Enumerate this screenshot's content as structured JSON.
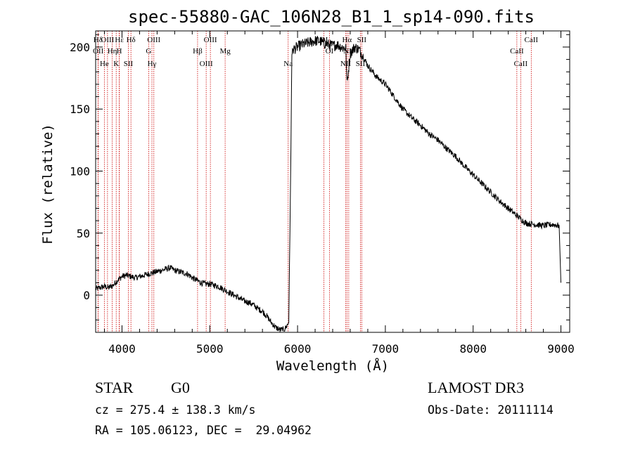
{
  "chart_data": {
    "type": "line",
    "title": "spec-55880-GAC_106N28_B1_1_sp14-090.fits",
    "xlabel": "Wavelength (Å)",
    "ylabel": "Flux (relative)",
    "xlim": [
      3700,
      9100
    ],
    "ylim": [
      -30,
      213
    ],
    "xticks": [
      "4000",
      "5000",
      "6000",
      "7000",
      "8000",
      "9000"
    ],
    "yticks": [
      "0",
      "50",
      "100",
      "150",
      "200"
    ],
    "series": [
      {
        "name": "spectrum",
        "x": [
          3700,
          3750,
          3800,
          3850,
          3900,
          3950,
          4000,
          4050,
          4100,
          4150,
          4200,
          4250,
          4300,
          4350,
          4400,
          4450,
          4500,
          4550,
          4600,
          4650,
          4700,
          4750,
          4800,
          4850,
          4900,
          4950,
          5000,
          5050,
          5100,
          5150,
          5200,
          5250,
          5300,
          5350,
          5400,
          5450,
          5500,
          5550,
          5600,
          5650,
          5700,
          5750,
          5800,
          5850,
          5900,
          5925,
          5935,
          5950,
          6000,
          6050,
          6100,
          6150,
          6200,
          6250,
          6300,
          6350,
          6400,
          6450,
          6500,
          6550,
          6563,
          6600,
          6650,
          6700,
          6750,
          6800,
          6900,
          7000,
          7100,
          7200,
          7300,
          7400,
          7500,
          7600,
          7700,
          7800,
          7900,
          8000,
          8100,
          8200,
          8300,
          8400,
          8500,
          8600,
          8700,
          8800,
          8900,
          8980,
          9000
        ],
        "y": [
          5,
          6,
          7,
          6,
          8,
          12,
          15,
          16,
          15,
          14,
          15,
          16,
          17,
          18,
          19,
          20,
          21,
          22,
          20,
          19,
          18,
          17,
          14,
          12,
          10,
          9,
          9,
          8,
          7,
          5,
          3,
          1,
          -1,
          -3,
          -5,
          -6,
          -8,
          -11,
          -13,
          -17,
          -22,
          -26,
          -28,
          -28,
          -22,
          120,
          195,
          198,
          200,
          202,
          203,
          204,
          205,
          205,
          203,
          202,
          201,
          202,
          200,
          199,
          170,
          195,
          200,
          198,
          192,
          185,
          176,
          170,
          160,
          150,
          143,
          137,
          130,
          125,
          118,
          112,
          104,
          97,
          90,
          83,
          76,
          70,
          64,
          58,
          57,
          56,
          57,
          56,
          10
        ]
      }
    ],
    "lines": [
      {
        "label": "Hδ",
        "wavelength": 3727
      },
      {
        "label": "OII",
        "wavelength": 3729
      },
      {
        "label": "He",
        "wavelength": 3799
      },
      {
        "label": "OIII",
        "wavelength": 3835
      },
      {
        "label": "Hη",
        "wavelength": 3889
      },
      {
        "label": "K",
        "wavelength": 3934
      },
      {
        "label": "Hε",
        "wavelength": 3970
      },
      {
        "label": "H",
        "wavelength": 3968
      },
      {
        "label": "SII",
        "wavelength": 4072
      },
      {
        "label": "Hδ",
        "wavelength": 4102
      },
      {
        "label": "G",
        "wavelength": 4304
      },
      {
        "label": "Hγ",
        "wavelength": 4341
      },
      {
        "label": "OIII",
        "wavelength": 4363
      },
      {
        "label": "Hβ",
        "wavelength": 4861
      },
      {
        "label": "OIII",
        "wavelength": 4959
      },
      {
        "label": "OIII",
        "wavelength": 5007
      },
      {
        "label": "Mg",
        "wavelength": 5175
      },
      {
        "label": "Na",
        "wavelength": 5893
      },
      {
        "label": "OI",
        "wavelength": 6300
      },
      {
        "label": "OI",
        "wavelength": 6363
      },
      {
        "label": "NII",
        "wavelength": 6548
      },
      {
        "label": "Hα",
        "wavelength": 6563
      },
      {
        "label": "NII",
        "wavelength": 6583
      },
      {
        "label": "SII",
        "wavelength": 6716
      },
      {
        "label": "SII",
        "wavelength": 6731
      },
      {
        "label": "CaII",
        "wavelength": 8498
      },
      {
        "label": "CaII",
        "wavelength": 8542
      },
      {
        "label": "CaII",
        "wavelength": 8662
      }
    ],
    "annotations": {
      "classification": "STAR",
      "subclass": "G0",
      "survey": "LAMOST DR3",
      "cz": "cz = 275.4 ± 138.3 km/s",
      "obs_date": "Obs-Date: 20111114",
      "radec": "RA = 105.06123, DEC =  29.04962"
    }
  },
  "colors": {
    "axis": "#000000",
    "spectrum": "#000000",
    "line_marker": "#cc0000",
    "background": "#ffffff"
  }
}
